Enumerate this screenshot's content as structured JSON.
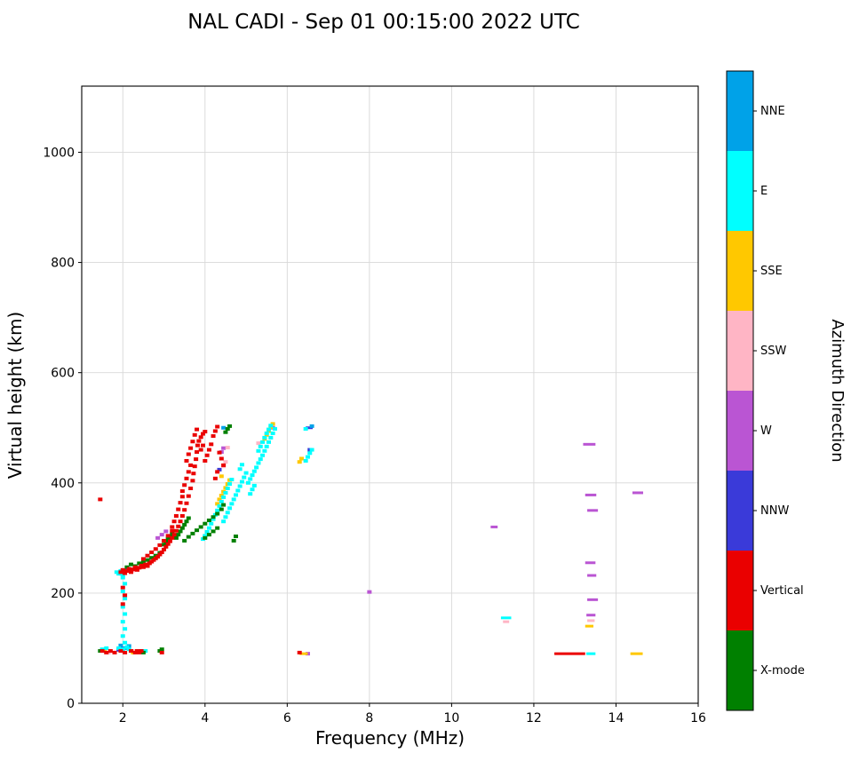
{
  "chart_data": {
    "type": "scatter",
    "title": "NAL CADI - Sep 01 00:15:00 2022 UTC",
    "xlabel": "Frequency (MHz)",
    "ylabel": "Virtual height (km)",
    "colorbar_label": "Azimuth Direction",
    "xlim": [
      1,
      16
    ],
    "ylim": [
      0,
      1120
    ],
    "x_ticks": [
      2,
      4,
      6,
      8,
      10,
      12,
      14,
      16
    ],
    "y_ticks": [
      0,
      200,
      400,
      600,
      800,
      1000
    ],
    "grid": true,
    "legend_position": "right-colorbar",
    "legend": [
      {
        "label": "NNE",
        "color": "#00A2E8"
      },
      {
        "label": "E",
        "color": "#00FFFF"
      },
      {
        "label": "SSE",
        "color": "#FFC800"
      },
      {
        "label": "SSW",
        "color": "#FFB5C5"
      },
      {
        "label": "W",
        "color": "#BA55D3"
      },
      {
        "label": "NNW",
        "color": "#3A3AD9"
      },
      {
        "label": "Vertical",
        "color": "#EA0000"
      },
      {
        "label": "X-mode",
        "color": "#008000"
      }
    ],
    "series": [
      {
        "name": "W",
        "color": "#BA55D3",
        "points": [
          [
            2.85,
            300
          ],
          [
            2.95,
            306
          ],
          [
            3.05,
            312
          ],
          [
            2.1,
            243
          ],
          [
            4.4,
            456
          ],
          [
            4.45,
            463
          ],
          [
            5.65,
            500
          ],
          [
            8.0,
            202
          ],
          [
            6.5,
            90
          ]
        ],
        "segments": [
          [
            10.95,
            11.12,
            320
          ],
          [
            13.2,
            13.5,
            470
          ],
          [
            13.25,
            13.52,
            378
          ],
          [
            13.3,
            13.56,
            350
          ],
          [
            13.25,
            13.5,
            255
          ],
          [
            13.3,
            13.52,
            232
          ],
          [
            13.3,
            13.56,
            188
          ],
          [
            13.28,
            13.5,
            160
          ],
          [
            14.4,
            14.66,
            382
          ]
        ]
      },
      {
        "name": "NNW",
        "color": "#3A3AD9",
        "points": [
          [
            2.0,
            100
          ],
          [
            1.9,
            97
          ],
          [
            2.45,
            95
          ],
          [
            4.35,
            424
          ],
          [
            6.55,
            460
          ]
        ],
        "segments": [
          [
            6.45,
            6.62,
            500
          ]
        ]
      },
      {
        "name": "NNE",
        "color": "#00A2E8",
        "points": [
          [
            1.95,
            105
          ],
          [
            2.05,
            100
          ],
          [
            2.15,
            104
          ],
          [
            6.6,
            503
          ],
          [
            4.45,
            500
          ]
        ],
        "segments": []
      },
      {
        "name": "SSW",
        "color": "#FFB5C5",
        "points": [
          [
            2.25,
            241
          ],
          [
            2.35,
            245
          ],
          [
            4.45,
            430
          ],
          [
            4.5,
            438
          ],
          [
            4.55,
            464
          ],
          [
            5.3,
            472
          ],
          [
            2.3,
            95
          ],
          [
            1.65,
            92
          ]
        ],
        "segments": [
          [
            13.3,
            13.48,
            150
          ],
          [
            11.25,
            11.4,
            148
          ]
        ]
      },
      {
        "name": "SSE",
        "color": "#FFC800",
        "points": [
          [
            4.3,
            362
          ],
          [
            4.35,
            370
          ],
          [
            4.4,
            377
          ],
          [
            4.45,
            384
          ],
          [
            4.5,
            391
          ],
          [
            4.55,
            398
          ],
          [
            4.6,
            405
          ],
          [
            4.4,
            412
          ],
          [
            5.45,
            480
          ],
          [
            5.5,
            487
          ],
          [
            5.55,
            494
          ],
          [
            5.6,
            501
          ],
          [
            5.65,
            507
          ],
          [
            6.3,
            438
          ],
          [
            6.35,
            444
          ],
          [
            2.2,
            95
          ],
          [
            2.25,
            92
          ],
          [
            1.55,
            95
          ]
        ],
        "segments": [
          [
            14.35,
            14.65,
            90
          ],
          [
            13.25,
            13.45,
            140
          ],
          [
            6.3,
            6.5,
            90
          ]
        ]
      },
      {
        "name": "E",
        "color": "#00FFFF",
        "points": [
          [
            1.85,
            238
          ],
          [
            1.9,
            235
          ],
          [
            1.95,
            240
          ],
          [
            2.0,
            233
          ],
          [
            2.05,
            110
          ],
          [
            2.0,
            122
          ],
          [
            2.05,
            135
          ],
          [
            2.0,
            148
          ],
          [
            2.05,
            162
          ],
          [
            2.0,
            175
          ],
          [
            2.05,
            190
          ],
          [
            2.0,
            203
          ],
          [
            2.05,
            217
          ],
          [
            2.0,
            228
          ],
          [
            3.95,
            298
          ],
          [
            4.0,
            304
          ],
          [
            4.05,
            311
          ],
          [
            4.1,
            318
          ],
          [
            4.15,
            326
          ],
          [
            4.2,
            334
          ],
          [
            4.25,
            342
          ],
          [
            4.3,
            350
          ],
          [
            4.35,
            358
          ],
          [
            4.4,
            366
          ],
          [
            4.45,
            374
          ],
          [
            4.5,
            382
          ],
          [
            4.55,
            390
          ],
          [
            4.6,
            398
          ],
          [
            4.65,
            406
          ],
          [
            4.45,
            330
          ],
          [
            4.5,
            338
          ],
          [
            4.55,
            346
          ],
          [
            4.6,
            354
          ],
          [
            4.65,
            362
          ],
          [
            4.7,
            370
          ],
          [
            4.75,
            378
          ],
          [
            4.8,
            386
          ],
          [
            4.85,
            394
          ],
          [
            4.9,
            402
          ],
          [
            4.95,
            410
          ],
          [
            5.0,
            418
          ],
          [
            4.85,
            425
          ],
          [
            4.9,
            433
          ],
          [
            5.05,
            400
          ],
          [
            5.1,
            407
          ],
          [
            5.15,
            414
          ],
          [
            5.2,
            421
          ],
          [
            5.25,
            428
          ],
          [
            5.3,
            436
          ],
          [
            5.35,
            443
          ],
          [
            5.4,
            450
          ],
          [
            5.45,
            458
          ],
          [
            5.5,
            466
          ],
          [
            5.55,
            474
          ],
          [
            5.6,
            482
          ],
          [
            5.65,
            490
          ],
          [
            5.7,
            498
          ],
          [
            5.5,
            490
          ],
          [
            5.55,
            497
          ],
          [
            5.6,
            504
          ],
          [
            5.45,
            482
          ],
          [
            5.4,
            474
          ],
          [
            5.35,
            466
          ],
          [
            5.3,
            458
          ],
          [
            5.1,
            380
          ],
          [
            5.15,
            388
          ],
          [
            5.2,
            395
          ],
          [
            6.45,
            440
          ],
          [
            6.5,
            447
          ],
          [
            6.55,
            454
          ],
          [
            6.6,
            460
          ],
          [
            6.45,
            498
          ],
          [
            1.5,
            98
          ],
          [
            1.6,
            100
          ],
          [
            1.9,
            100
          ],
          [
            2.0,
            98
          ],
          [
            2.1,
            102
          ],
          [
            2.15,
            98
          ],
          [
            2.55,
            95
          ]
        ],
        "segments": [
          [
            11.2,
            11.45,
            155
          ],
          [
            13.28,
            13.5,
            90
          ]
        ]
      },
      {
        "name": "X-mode",
        "color": "#008000",
        "points": [
          [
            2.1,
            247
          ],
          [
            2.2,
            252
          ],
          [
            2.3,
            249
          ],
          [
            2.4,
            254
          ],
          [
            2.5,
            256
          ],
          [
            2.6,
            260
          ],
          [
            2.7,
            264
          ],
          [
            2.8,
            268
          ],
          [
            2.9,
            273
          ],
          [
            3.0,
            288
          ],
          [
            3.05,
            293
          ],
          [
            3.1,
            298
          ],
          [
            3.15,
            303
          ],
          [
            3.2,
            308
          ],
          [
            3.3,
            300
          ],
          [
            3.35,
            306
          ],
          [
            3.4,
            312
          ],
          [
            3.45,
            318
          ],
          [
            3.5,
            324
          ],
          [
            3.55,
            330
          ],
          [
            3.6,
            336
          ],
          [
            3.5,
            295
          ],
          [
            3.6,
            302
          ],
          [
            3.7,
            308
          ],
          [
            3.8,
            314
          ],
          [
            3.9,
            320
          ],
          [
            4.0,
            326
          ],
          [
            4.1,
            332
          ],
          [
            4.2,
            338
          ],
          [
            4.3,
            344
          ],
          [
            4.0,
            300
          ],
          [
            4.1,
            306
          ],
          [
            4.2,
            312
          ],
          [
            4.3,
            318
          ],
          [
            4.4,
            352
          ],
          [
            4.45,
            360
          ],
          [
            4.5,
            492
          ],
          [
            4.55,
            498
          ],
          [
            4.6,
            503
          ],
          [
            4.7,
            295
          ],
          [
            4.75,
            303
          ],
          [
            2.9,
            95
          ],
          [
            2.95,
            98
          ],
          [
            2.5,
            92
          ],
          [
            1.45,
            95
          ]
        ],
        "segments": []
      },
      {
        "name": "Vertical",
        "color": "#EA0000",
        "points": [
          [
            1.45,
            370
          ],
          [
            1.95,
            238
          ],
          [
            2.0,
            242
          ],
          [
            2.05,
            236
          ],
          [
            2.1,
            240
          ],
          [
            2.15,
            244
          ],
          [
            2.2,
            238
          ],
          [
            2.25,
            243
          ],
          [
            2.3,
            247
          ],
          [
            2.35,
            242
          ],
          [
            2.4,
            246
          ],
          [
            2.45,
            250
          ],
          [
            2.5,
            247
          ],
          [
            2.55,
            252
          ],
          [
            2.6,
            249
          ],
          [
            2.65,
            254
          ],
          [
            2.7,
            257
          ],
          [
            2.75,
            260
          ],
          [
            2.8,
            263
          ],
          [
            2.85,
            266
          ],
          [
            2.9,
            270
          ],
          [
            2.95,
            274
          ],
          [
            3.0,
            279
          ],
          [
            3.05,
            284
          ],
          [
            3.1,
            289
          ],
          [
            3.15,
            294
          ],
          [
            3.2,
            300
          ],
          [
            3.25,
            306
          ],
          [
            3.3,
            313
          ],
          [
            3.35,
            321
          ],
          [
            3.4,
            330
          ],
          [
            3.45,
            340
          ],
          [
            3.5,
            351
          ],
          [
            3.55,
            363
          ],
          [
            3.6,
            376
          ],
          [
            3.65,
            390
          ],
          [
            3.7,
            404
          ],
          [
            3.72,
            417
          ],
          [
            3.75,
            430
          ],
          [
            3.78,
            443
          ],
          [
            3.8,
            456
          ],
          [
            3.82,
            468
          ],
          [
            3.6,
            420
          ],
          [
            3.65,
            432
          ],
          [
            3.55,
            408
          ],
          [
            3.5,
            396
          ],
          [
            3.45,
            385
          ],
          [
            3.55,
            440
          ],
          [
            3.6,
            452
          ],
          [
            3.65,
            463
          ],
          [
            3.7,
            475
          ],
          [
            3.75,
            487
          ],
          [
            3.8,
            497
          ],
          [
            3.85,
            476
          ],
          [
            3.9,
            483
          ],
          [
            3.95,
            489
          ],
          [
            4.0,
            493
          ],
          [
            3.9,
            460
          ],
          [
            3.95,
            468
          ],
          [
            4.0,
            440
          ],
          [
            4.05,
            450
          ],
          [
            4.1,
            460
          ],
          [
            4.15,
            470
          ],
          [
            3.3,
            340
          ],
          [
            3.35,
            352
          ],
          [
            3.4,
            364
          ],
          [
            3.45,
            375
          ],
          [
            3.25,
            330
          ],
          [
            3.2,
            320
          ],
          [
            2.0,
            210
          ],
          [
            2.05,
            196
          ],
          [
            2.0,
            180
          ],
          [
            4.2,
            485
          ],
          [
            4.25,
            494
          ],
          [
            4.3,
            502
          ],
          [
            4.35,
            455
          ],
          [
            4.4,
            444
          ],
          [
            4.45,
            432
          ],
          [
            4.3,
            420
          ],
          [
            4.25,
            408
          ],
          [
            2.5,
            262
          ],
          [
            2.6,
            268
          ],
          [
            2.7,
            274
          ],
          [
            2.8,
            280
          ],
          [
            2.9,
            287
          ],
          [
            3.0,
            295
          ],
          [
            3.1,
            304
          ],
          [
            3.2,
            313
          ],
          [
            1.5,
            95
          ],
          [
            1.6,
            92
          ],
          [
            1.7,
            95
          ],
          [
            1.8,
            92
          ],
          [
            1.95,
            95
          ],
          [
            2.05,
            92
          ],
          [
            2.2,
            95
          ],
          [
            2.3,
            92
          ],
          [
            2.35,
            95
          ],
          [
            2.4,
            92
          ],
          [
            2.45,
            95
          ],
          [
            2.95,
            92
          ],
          [
            6.3,
            92
          ]
        ],
        "segments": [
          [
            12.5,
            13.25,
            90
          ]
        ]
      }
    ]
  }
}
